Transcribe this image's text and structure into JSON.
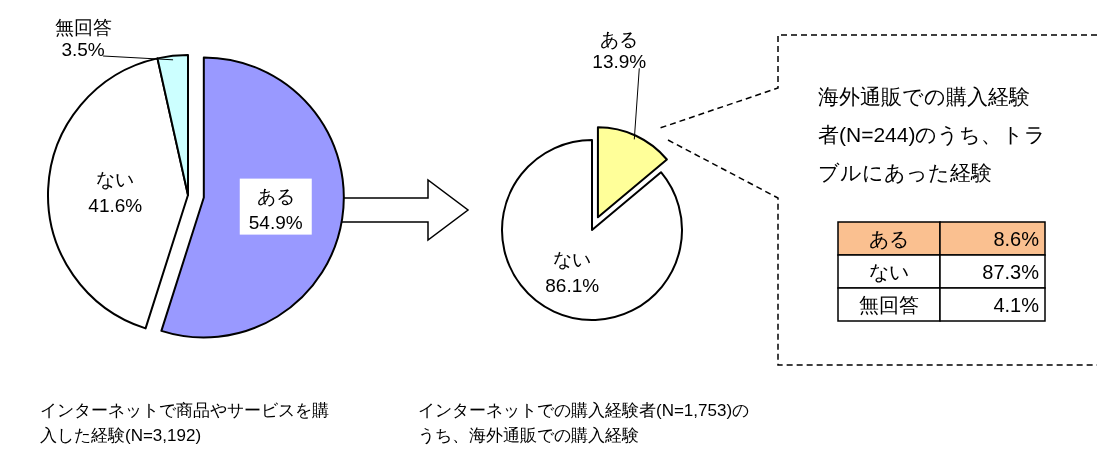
{
  "chart_data": [
    {
      "type": "pie",
      "title": "インターネットで商品やサービスを購入した経験(N=3,192)",
      "categories": [
        "ある",
        "ない",
        "無回答"
      ],
      "values": [
        54.9,
        41.6,
        3.5
      ],
      "value_labels": [
        "54.9%",
        "41.6%",
        "3.5%"
      ],
      "colors": [
        "#9999ff",
        "#ffffff",
        "#ccffff"
      ]
    },
    {
      "type": "pie",
      "title": "インターネットでの購入経験者(N=1,753)のうち、海外通販での購入経験",
      "categories": [
        "ある",
        "ない"
      ],
      "values": [
        13.9,
        86.1
      ],
      "value_labels": [
        "13.9%",
        "86.1%"
      ],
      "colors": [
        "#ffff99",
        "#ffffff"
      ]
    },
    {
      "type": "other",
      "title": "海外通販での購入経験者(N=244)のうち、トラブルにあった経験",
      "categories": [
        "ある",
        "ない",
        "無回答"
      ],
      "values": [
        8.6,
        87.3,
        4.1
      ],
      "value_labels": [
        "8.6%",
        "87.3%",
        "4.1%"
      ],
      "colors": [
        "#fac090",
        "#ffffff",
        "#ffffff"
      ]
    }
  ]
}
